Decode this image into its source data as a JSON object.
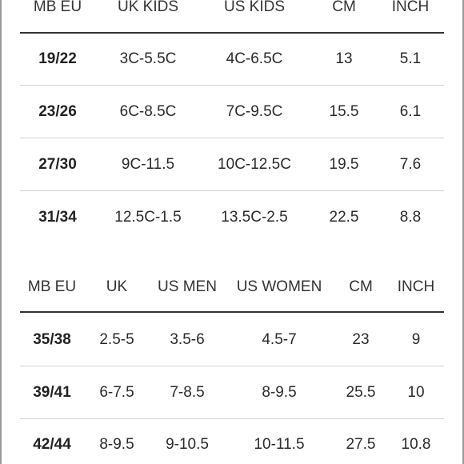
{
  "table_kids": {
    "headers": [
      "MB EU",
      "UK KIDS",
      "US KIDS",
      "CM",
      "INCH"
    ],
    "rows": [
      [
        "19/22",
        "3C-5.5C",
        "4C-6.5C",
        "13",
        "5.1"
      ],
      [
        "23/26",
        "6C-8.5C",
        "7C-9.5C",
        "15.5",
        "6.1"
      ],
      [
        "27/30",
        "9C-11.5",
        "10C-12.5C",
        "19.5",
        "7.6"
      ],
      [
        "31/34",
        "12.5C-1.5",
        "13.5C-2.5",
        "22.5",
        "8.8"
      ]
    ]
  },
  "table_adult": {
    "headers": [
      "MB EU",
      "UK",
      "US MEN",
      "US WOMEN",
      "CM",
      "INCH"
    ],
    "rows": [
      [
        "35/38",
        "2.5-5",
        "3.5-6",
        "4.5-7",
        "23",
        "9"
      ],
      [
        "39/41",
        "6-7.5",
        "7-8.5",
        "8-9.5",
        "25.5",
        "10"
      ],
      [
        "42/44",
        "8-9.5",
        "9-10.5",
        "10-11.5",
        "27.5",
        "10.8"
      ]
    ]
  }
}
